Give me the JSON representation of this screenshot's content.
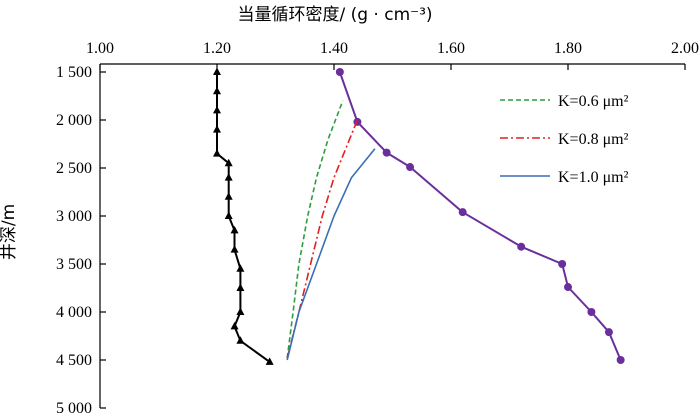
{
  "chart_data": {
    "type": "line",
    "xlabel": "当量循环密度/ (g · cm⁻³)",
    "ylabel": "井深/m",
    "x_axis_position": "top",
    "y_inverted": true,
    "xlim": [
      1.0,
      2.0
    ],
    "ylim": [
      1500,
      5000
    ],
    "x_ticks": [
      1.0,
      1.2,
      1.4,
      1.6,
      1.8,
      2.0
    ],
    "x_tick_labels": [
      "1.00",
      "1.20",
      "1.40",
      "1.60",
      "1.80",
      "2.00"
    ],
    "y_ticks": [
      1500,
      2000,
      2500,
      3000,
      3500,
      4000,
      4500,
      5000
    ],
    "y_tick_labels": [
      "1 500",
      "2 000",
      "2 500",
      "3 000",
      "3 500",
      "4 000",
      "4 500",
      "5 000"
    ],
    "legend_position": "top-right",
    "series": [
      {
        "key": "black",
        "color": "#000000",
        "marker": "triangle",
        "points": [
          [
            1.2,
            1500
          ],
          [
            1.2,
            1700
          ],
          [
            1.2,
            1900
          ],
          [
            1.2,
            2100
          ],
          [
            1.2,
            2350
          ],
          [
            1.22,
            2450
          ],
          [
            1.22,
            2600
          ],
          [
            1.22,
            2800
          ],
          [
            1.22,
            3000
          ],
          [
            1.23,
            3150
          ],
          [
            1.23,
            3350
          ],
          [
            1.24,
            3550
          ],
          [
            1.24,
            3750
          ],
          [
            1.24,
            4000
          ],
          [
            1.23,
            4150
          ],
          [
            1.24,
            4300
          ],
          [
            1.29,
            4520
          ]
        ]
      },
      {
        "key": "purple",
        "color": "#6a2f9c",
        "marker": "circle",
        "points": [
          [
            1.41,
            1500
          ],
          [
            1.44,
            2020
          ],
          [
            1.49,
            2340
          ],
          [
            1.53,
            2490
          ],
          [
            1.62,
            2960
          ],
          [
            1.72,
            3320
          ],
          [
            1.79,
            3500
          ],
          [
            1.8,
            3740
          ],
          [
            1.84,
            4000
          ],
          [
            1.87,
            4210
          ],
          [
            1.89,
            4500
          ]
        ]
      },
      {
        "key": "k06",
        "name": "K=0.6 μm²",
        "color": "#2e9c3f",
        "dash": "5,3",
        "points": [
          [
            1.32,
            4480
          ],
          [
            1.33,
            4000
          ],
          [
            1.34,
            3500
          ],
          [
            1.355,
            3000
          ],
          [
            1.37,
            2600
          ],
          [
            1.39,
            2200
          ],
          [
            1.415,
            1800
          ]
        ]
      },
      {
        "key": "k08",
        "name": "K=0.8 μm²",
        "color": "#e02020",
        "dash": "8,3,2,3",
        "points": [
          [
            1.32,
            4480
          ],
          [
            1.34,
            4000
          ],
          [
            1.36,
            3500
          ],
          [
            1.38,
            3000
          ],
          [
            1.4,
            2600
          ],
          [
            1.42,
            2300
          ],
          [
            1.44,
            2000
          ]
        ]
      },
      {
        "key": "k10",
        "name": "K=1.0 μm²",
        "color": "#3a6fb5",
        "dash": "",
        "points": [
          [
            1.32,
            4500
          ],
          [
            1.34,
            4000
          ],
          [
            1.37,
            3500
          ],
          [
            1.4,
            3000
          ],
          [
            1.43,
            2600
          ],
          [
            1.47,
            2300
          ]
        ]
      }
    ]
  }
}
